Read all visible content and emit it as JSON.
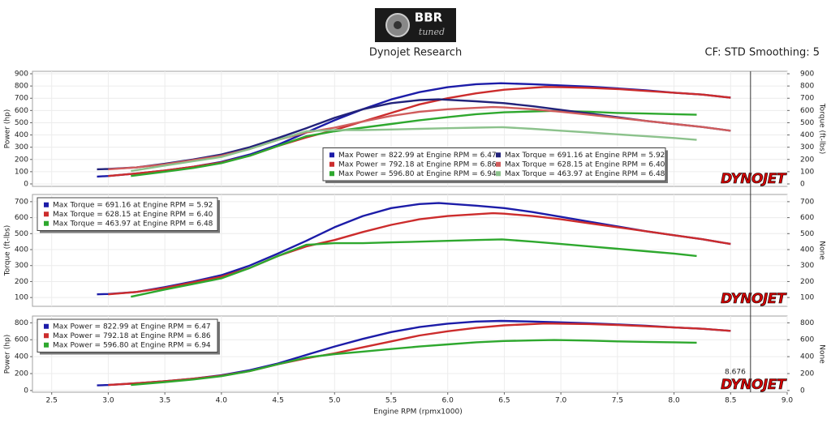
{
  "header": {
    "logo": {
      "brand": "BBR",
      "tag": "tuned"
    },
    "title": "Dynojet Research",
    "settings": "CF: STD Smoothing: 5"
  },
  "watermark": "DYNOJET",
  "cursor": 8.676,
  "chart_data": [
    {
      "type": "line",
      "ylabel": "Power (hp)",
      "y2label": "Torque (ft-lbs)",
      "xlim": [
        2.33,
        9.0
      ],
      "ylim": [
        -20,
        920
      ],
      "yticks": [
        0,
        100,
        200,
        300,
        400,
        500,
        600,
        700,
        800,
        900
      ],
      "y2lim": [
        -20,
        920
      ],
      "y2ticks": [
        0,
        100,
        200,
        300,
        400,
        500,
        600,
        700,
        800,
        900
      ],
      "grid": true,
      "legend": "bottom-center",
      "series": [
        {
          "name": "Max Power = 822.99 at Engine RPM = 6.47",
          "color": "#1c1ca8",
          "x": [
            2.9,
            3.0,
            3.25,
            3.5,
            3.75,
            4.0,
            4.25,
            4.5,
            4.75,
            5.0,
            5.25,
            5.5,
            5.75,
            6.0,
            6.25,
            6.47,
            6.75,
            7.0,
            7.25,
            7.5,
            7.75,
            8.0,
            8.25,
            8.5
          ],
          "values": [
            60,
            65,
            85,
            110,
            140,
            180,
            240,
            320,
            420,
            520,
            610,
            690,
            750,
            790,
            815,
            823,
            815,
            805,
            795,
            780,
            765,
            745,
            730,
            705
          ]
        },
        {
          "name": "Max Power = 792.18 at Engine RPM = 6.86",
          "color": "#cc2c2c",
          "x": [
            3.0,
            3.25,
            3.5,
            3.75,
            4.0,
            4.25,
            4.5,
            4.75,
            5.0,
            5.25,
            5.5,
            5.75,
            6.0,
            6.25,
            6.5,
            6.86,
            7.0,
            7.25,
            7.5,
            7.75,
            8.0,
            8.25,
            8.5
          ],
          "values": [
            65,
            85,
            110,
            140,
            175,
            230,
            310,
            380,
            440,
            510,
            580,
            650,
            700,
            740,
            770,
            792,
            790,
            785,
            775,
            760,
            745,
            730,
            705
          ]
        },
        {
          "name": "Max Power = 596.80 at Engine RPM = 6.94",
          "color": "#2ea82e",
          "x": [
            3.2,
            3.5,
            3.75,
            4.0,
            4.25,
            4.5,
            4.75,
            5.0,
            5.25,
            5.5,
            5.75,
            6.0,
            6.25,
            6.5,
            6.75,
            6.94,
            7.25,
            7.5,
            7.75,
            8.0,
            8.2
          ],
          "values": [
            65,
            100,
            130,
            170,
            230,
            310,
            390,
            430,
            460,
            490,
            520,
            545,
            570,
            585,
            592,
            597,
            590,
            580,
            575,
            570,
            565
          ]
        },
        {
          "name": "Max Torque = 691.16 at Engine RPM = 5.92",
          "color": "#22227a",
          "axis": "y2",
          "x": [
            2.9,
            3.0,
            3.25,
            3.5,
            3.75,
            4.0,
            4.25,
            4.5,
            4.75,
            5.0,
            5.25,
            5.5,
            5.75,
            5.92,
            6.25,
            6.5,
            6.75,
            7.0,
            7.25,
            7.5,
            7.75,
            8.0,
            8.25,
            8.5
          ],
          "values": [
            120,
            122,
            135,
            165,
            200,
            240,
            300,
            375,
            455,
            540,
            610,
            660,
            685,
            691,
            675,
            660,
            635,
            605,
            575,
            545,
            515,
            490,
            465,
            435
          ]
        },
        {
          "name": "Max Torque = 628.15 at Engine RPM = 6.40",
          "color": "#d05c5c",
          "axis": "y2",
          "x": [
            3.0,
            3.25,
            3.5,
            3.75,
            4.0,
            4.25,
            4.5,
            4.75,
            5.0,
            5.25,
            5.5,
            5.75,
            6.0,
            6.4,
            6.5,
            6.75,
            7.0,
            7.25,
            7.5,
            7.75,
            8.0,
            8.25,
            8.5
          ],
          "values": [
            120,
            135,
            160,
            195,
            230,
            285,
            360,
            420,
            460,
            510,
            555,
            590,
            610,
            628,
            625,
            610,
            590,
            565,
            540,
            515,
            490,
            465,
            435
          ]
        },
        {
          "name": "Max Torque = 463.97 at Engine RPM = 6.48",
          "color": "#8cc28c",
          "axis": "y2",
          "x": [
            3.2,
            3.5,
            3.75,
            4.0,
            4.25,
            4.5,
            4.75,
            5.0,
            5.25,
            5.5,
            5.75,
            6.0,
            6.25,
            6.48,
            6.75,
            7.0,
            7.25,
            7.5,
            7.75,
            8.0,
            8.2
          ],
          "values": [
            105,
            150,
            185,
            220,
            285,
            360,
            430,
            440,
            440,
            445,
            450,
            455,
            460,
            464,
            450,
            435,
            420,
            405,
            390,
            375,
            360
          ]
        }
      ]
    },
    {
      "type": "line",
      "ylabel": "Torque (ft-lbs)",
      "y2label": "None",
      "xlim": [
        2.33,
        9.0
      ],
      "ylim": [
        45,
        745
      ],
      "yticks": [
        100,
        200,
        300,
        400,
        500,
        600,
        700
      ],
      "y2lim": [
        45,
        745
      ],
      "y2ticks": [
        100,
        200,
        300,
        400,
        500,
        600,
        700
      ],
      "grid": true,
      "legend": "top-left",
      "series": [
        {
          "name": "Max Torque = 691.16 at Engine RPM = 5.92",
          "color": "#1c1ca8",
          "x": [
            2.9,
            3.0,
            3.25,
            3.5,
            3.75,
            4.0,
            4.25,
            4.5,
            4.75,
            5.0,
            5.25,
            5.5,
            5.75,
            5.92,
            6.25,
            6.5,
            6.75,
            7.0,
            7.25,
            7.5,
            7.75,
            8.0,
            8.25,
            8.5
          ],
          "values": [
            120,
            122,
            135,
            165,
            200,
            240,
            300,
            375,
            455,
            540,
            610,
            660,
            685,
            691,
            675,
            660,
            635,
            605,
            575,
            545,
            515,
            490,
            465,
            435
          ]
        },
        {
          "name": "Max Torque = 628.15 at Engine RPM = 6.40",
          "color": "#cc2c2c",
          "x": [
            3.0,
            3.25,
            3.5,
            3.75,
            4.0,
            4.25,
            4.5,
            4.75,
            5.0,
            5.25,
            5.5,
            5.75,
            6.0,
            6.4,
            6.5,
            6.75,
            7.0,
            7.25,
            7.5,
            7.75,
            8.0,
            8.25,
            8.5
          ],
          "values": [
            120,
            135,
            160,
            195,
            230,
            285,
            360,
            420,
            460,
            510,
            555,
            590,
            610,
            628,
            625,
            610,
            590,
            565,
            540,
            515,
            490,
            465,
            435
          ]
        },
        {
          "name": "Max Torque = 463.97 at Engine RPM = 6.48",
          "color": "#2ea82e",
          "x": [
            3.2,
            3.5,
            3.75,
            4.0,
            4.25,
            4.5,
            4.75,
            5.0,
            5.25,
            5.5,
            5.75,
            6.0,
            6.25,
            6.48,
            6.75,
            7.0,
            7.25,
            7.5,
            7.75,
            8.0,
            8.2
          ],
          "values": [
            105,
            150,
            185,
            220,
            285,
            360,
            430,
            440,
            440,
            445,
            450,
            455,
            460,
            464,
            450,
            435,
            420,
            405,
            390,
            375,
            360
          ]
        }
      ]
    },
    {
      "type": "line",
      "ylabel": "Power (hp)",
      "y2label": "None",
      "xlabel": "Engine RPM (rpmx1000)",
      "xlim": [
        2.33,
        9.0
      ],
      "xticks": [
        2.5,
        {
          "value": 3,
          "label": "3.0"
        },
        3.5,
        {
          "value": 4,
          "label": "4.0"
        },
        4.5,
        {
          "value": 5,
          "label": "5.0"
        },
        5.5,
        {
          "value": 6,
          "label": "6.0"
        },
        6.5,
        {
          "value": 7,
          "label": "7.0"
        },
        7.5,
        {
          "value": 8,
          "label": "8.0"
        },
        8.5,
        {
          "value": 9,
          "label": "9.0"
        }
      ],
      "ylim": [
        -20,
        880
      ],
      "yticks": [
        0,
        200,
        400,
        600,
        800
      ],
      "y2lim": [
        -20,
        880
      ],
      "y2ticks": [
        0,
        200,
        400,
        600,
        800
      ],
      "grid": true,
      "legend": "top-left",
      "series": [
        {
          "name": "Max Power = 822.99 at Engine RPM = 6.47",
          "color": "#1c1ca8",
          "x": [
            2.9,
            3.0,
            3.25,
            3.5,
            3.75,
            4.0,
            4.25,
            4.5,
            4.75,
            5.0,
            5.25,
            5.5,
            5.75,
            6.0,
            6.25,
            6.47,
            6.75,
            7.0,
            7.25,
            7.5,
            7.75,
            8.0,
            8.25,
            8.5
          ],
          "values": [
            60,
            65,
            85,
            110,
            140,
            180,
            240,
            320,
            420,
            520,
            610,
            690,
            750,
            790,
            815,
            823,
            815,
            805,
            795,
            780,
            765,
            745,
            730,
            705
          ]
        },
        {
          "name": "Max Power = 792.18 at Engine RPM = 6.86",
          "color": "#cc2c2c",
          "x": [
            3.0,
            3.25,
            3.5,
            3.75,
            4.0,
            4.25,
            4.5,
            4.75,
            5.0,
            5.25,
            5.5,
            5.75,
            6.0,
            6.25,
            6.5,
            6.86,
            7.0,
            7.25,
            7.5,
            7.75,
            8.0,
            8.25,
            8.5
          ],
          "values": [
            65,
            85,
            110,
            140,
            175,
            230,
            310,
            380,
            440,
            510,
            580,
            650,
            700,
            740,
            770,
            792,
            790,
            785,
            775,
            760,
            745,
            730,
            705
          ]
        },
        {
          "name": "Max Power = 596.80 at Engine RPM = 6.94",
          "color": "#2ea82e",
          "x": [
            3.2,
            3.5,
            3.75,
            4.0,
            4.25,
            4.5,
            4.75,
            5.0,
            5.25,
            5.5,
            5.75,
            6.0,
            6.25,
            6.5,
            6.75,
            6.94,
            7.25,
            7.5,
            7.75,
            8.0,
            8.2
          ],
          "values": [
            65,
            100,
            130,
            170,
            230,
            310,
            390,
            430,
            460,
            490,
            520,
            545,
            570,
            585,
            592,
            597,
            590,
            580,
            575,
            570,
            565
          ]
        }
      ]
    }
  ]
}
